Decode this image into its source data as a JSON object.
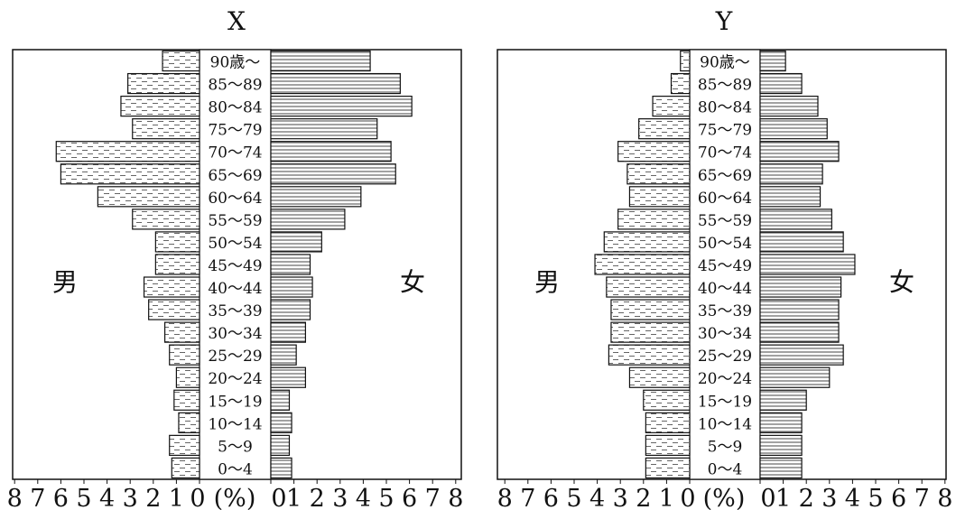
{
  "chart_data": [
    {
      "type": "bar",
      "orientation": "population-pyramid",
      "title": "X",
      "left_label": "男",
      "right_label": "女",
      "axis_unit": "(%)",
      "ticks_left": [
        "8",
        "7",
        "6",
        "5",
        "4",
        "3",
        "2",
        "1",
        "0"
      ],
      "ticks_right": [
        "0",
        "1",
        "2",
        "3",
        "4",
        "5",
        "6",
        "7",
        "8"
      ],
      "xlim": [
        0,
        8
      ],
      "categories": [
        "90歳～",
        "85～89",
        "80～84",
        "75～79",
        "70～74",
        "65～69",
        "60～64",
        "55～59",
        "50～54",
        "45～49",
        "40～44",
        "35～39",
        "30～34",
        "25～29",
        "20～24",
        "15～19",
        "10～14",
        "5～9",
        "0～4"
      ],
      "series": [
        {
          "name": "男",
          "values": [
            1.6,
            3.1,
            3.4,
            2.9,
            6.2,
            6.0,
            4.4,
            2.9,
            1.9,
            1.9,
            2.4,
            2.2,
            1.5,
            1.3,
            1.0,
            1.1,
            0.9,
            1.3,
            1.2
          ]
        },
        {
          "name": "女",
          "values": [
            4.3,
            5.6,
            6.1,
            4.6,
            5.2,
            5.4,
            3.9,
            3.2,
            2.2,
            1.7,
            1.8,
            1.7,
            1.5,
            1.1,
            1.5,
            0.8,
            0.9,
            0.8,
            0.9
          ]
        }
      ]
    },
    {
      "type": "bar",
      "orientation": "population-pyramid",
      "title": "Y",
      "left_label": "男",
      "right_label": "女",
      "axis_unit": "(%)",
      "ticks_left": [
        "8",
        "7",
        "6",
        "5",
        "4",
        "3",
        "2",
        "1",
        "0"
      ],
      "ticks_right": [
        "0",
        "1",
        "2",
        "3",
        "4",
        "5",
        "6",
        "7",
        "8"
      ],
      "xlim": [
        0,
        8
      ],
      "categories": [
        "90歳～",
        "85～89",
        "80～84",
        "75～79",
        "70～74",
        "65～69",
        "60～64",
        "55～59",
        "50～54",
        "45～49",
        "40～44",
        "35～39",
        "30～34",
        "25～29",
        "20～24",
        "15～19",
        "10～14",
        "5～9",
        "0～4"
      ],
      "series": [
        {
          "name": "男",
          "values": [
            0.4,
            0.8,
            1.6,
            2.2,
            3.1,
            2.7,
            2.6,
            3.1,
            3.7,
            4.1,
            3.6,
            3.4,
            3.4,
            3.5,
            2.6,
            2.0,
            1.9,
            1.9,
            1.9
          ]
        },
        {
          "name": "女",
          "values": [
            1.1,
            1.8,
            2.5,
            2.9,
            3.4,
            2.7,
            2.6,
            3.1,
            3.6,
            4.1,
            3.5,
            3.4,
            3.4,
            3.6,
            3.0,
            2.0,
            1.8,
            1.8,
            1.8
          ]
        }
      ]
    }
  ]
}
